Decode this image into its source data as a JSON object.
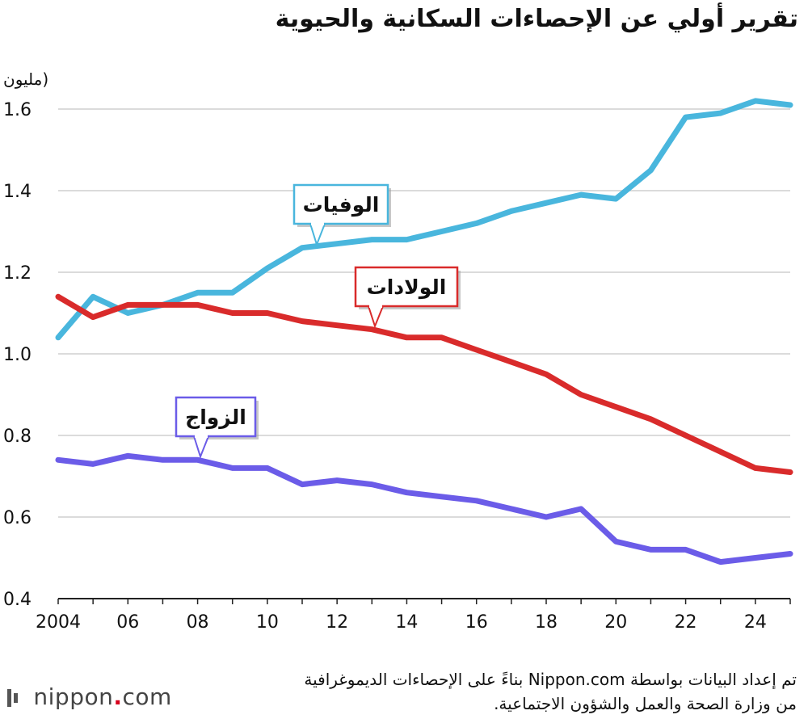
{
  "chart_data": {
    "type": "line",
    "title": "تقرير أولي عن الإحصاءات السكانية والحيوية",
    "ylabel": "(مليون",
    "xlabel": "",
    "ylim": [
      0.4,
      1.65
    ],
    "yticks": [
      0.4,
      0.6,
      0.8,
      1.0,
      1.2,
      1.4,
      1.6
    ],
    "ytick_labels": [
      "0.4",
      "0.6",
      "0.8",
      "1.0",
      "1.2",
      "1.4",
      "1.6"
    ],
    "x": [
      2004,
      2005,
      2006,
      2007,
      2008,
      2009,
      2010,
      2011,
      2012,
      2013,
      2014,
      2015,
      2016,
      2017,
      2018,
      2019,
      2020,
      2021,
      2022,
      2023,
      2024,
      2025
    ],
    "xticks": [
      2004,
      2006,
      2008,
      2010,
      2012,
      2014,
      2016,
      2018,
      2020,
      2022,
      2024
    ],
    "xtick_labels": [
      "2004",
      "06",
      "08",
      "10",
      "12",
      "14",
      "16",
      "18",
      "20",
      "22",
      "24"
    ],
    "grid": true,
    "series": [
      {
        "name": "الوفيات",
        "color": "#49b6dd",
        "values": [
          1.04,
          1.14,
          1.1,
          1.12,
          1.15,
          1.15,
          1.21,
          1.26,
          1.27,
          1.28,
          1.28,
          1.3,
          1.32,
          1.35,
          1.37,
          1.39,
          1.38,
          1.45,
          1.58,
          1.59,
          1.62,
          1.61
        ]
      },
      {
        "name": "الولادات",
        "color": "#d92b2b",
        "values": [
          1.14,
          1.09,
          1.12,
          1.12,
          1.12,
          1.1,
          1.1,
          1.08,
          1.07,
          1.06,
          1.04,
          1.04,
          1.01,
          0.98,
          0.95,
          0.9,
          0.87,
          0.84,
          0.8,
          0.76,
          0.72,
          0.71
        ]
      },
      {
        "name": "الزواج",
        "color": "#6b5ce8",
        "values": [
          0.74,
          0.73,
          0.75,
          0.74,
          0.74,
          0.72,
          0.72,
          0.68,
          0.69,
          0.68,
          0.66,
          0.65,
          0.64,
          0.62,
          0.6,
          0.62,
          0.54,
          0.52,
          0.52,
          0.49,
          0.5,
          0.51
        ]
      }
    ]
  },
  "source": {
    "line1": "تم إعداد البيانات بواسطة Nippon.com بناءً على الإحصاءات الديموغرافية",
    "line2": "من وزارة الصحة والعمل والشؤون الاجتماعية."
  },
  "logo": {
    "name": "nippon",
    "sep": ".",
    "tld": "com"
  }
}
